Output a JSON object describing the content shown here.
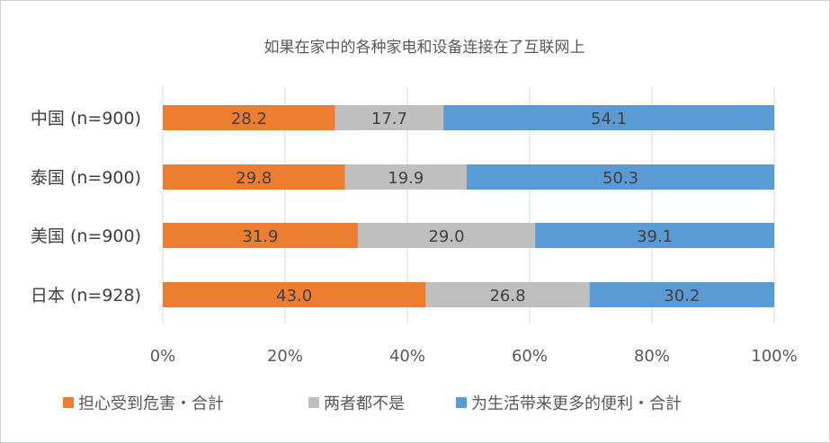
{
  "chart_data": {
    "type": "bar",
    "orientation": "horizontal",
    "stacked": "percent",
    "title": "如果在家中的各种家电和设备连接在了互联网上",
    "categories": [
      "中国 (n=900)",
      "泰国 (n=900)",
      "美国 (n=900)",
      "日本 (n=928)"
    ],
    "series": [
      {
        "name": "担心受到危害・合計",
        "color": "#ed7d31",
        "values": [
          28.2,
          29.8,
          31.9,
          43.0
        ]
      },
      {
        "name": "两者都不是",
        "color": "#bfbfbf",
        "values": [
          17.7,
          19.9,
          29.0,
          26.8
        ]
      },
      {
        "name": "为生活带来更多的便利・合計",
        "color": "#5b9bd5",
        "values": [
          54.1,
          50.3,
          39.1,
          30.2
        ]
      }
    ],
    "xlim": [
      0,
      100
    ],
    "x_ticks": [
      "0%",
      "20%",
      "40%",
      "60%",
      "80%",
      "100%"
    ],
    "grid": true,
    "legend_position": "bottom"
  }
}
